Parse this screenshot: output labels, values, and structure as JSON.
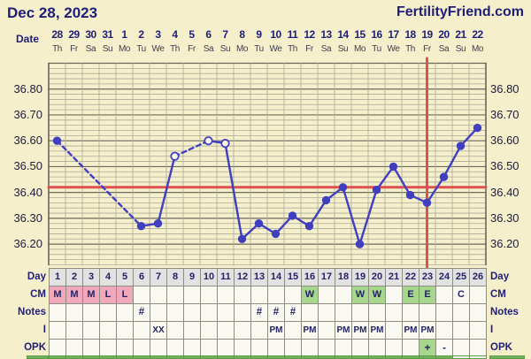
{
  "header": {
    "title": "Dec 28, 2023",
    "brand": "FertilityFriend.com"
  },
  "colors": {
    "cream": "#F6EFCC",
    "navy": "#1E1E78",
    "line_blue": "#3F3FC0",
    "accent_red": "#DE5151",
    "grid_minor": "#ABAB99",
    "grid_major": "#6A6A5C",
    "grid_border": "#55554A",
    "cell_pink": "#F2A8BC",
    "cell_green": "#A6D78C",
    "band_green": "#72B25A",
    "day_cell_gray": "#E2E2E2",
    "open_dot_fill": "#FBF8EC"
  },
  "date_header": {
    "label": "Date",
    "dates": [
      "28",
      "29",
      "30",
      "31",
      "1",
      "2",
      "3",
      "4",
      "5",
      "6",
      "7",
      "8",
      "9",
      "10",
      "11",
      "12",
      "13",
      "14",
      "15",
      "16",
      "17",
      "18",
      "19",
      "20",
      "21",
      "22"
    ],
    "dows": [
      "Th",
      "Fr",
      "Sa",
      "Su",
      "Mo",
      "Tu",
      "We",
      "Th",
      "Fr",
      "Sa",
      "Su",
      "Mo",
      "Tu",
      "We",
      "Th",
      "Fr",
      "Sa",
      "Su",
      "Mo",
      "Tu",
      "We",
      "Th",
      "Fr",
      "Sa",
      "Su",
      "Mo"
    ]
  },
  "chart_data": {
    "type": "line",
    "title": "Basal body temperature by cycle day",
    "x_days": [
      1,
      2,
      3,
      4,
      5,
      6,
      7,
      8,
      9,
      10,
      11,
      12,
      13,
      14,
      15,
      16,
      17,
      18,
      19,
      20,
      21,
      22,
      23,
      24,
      25,
      26
    ],
    "temps": [
      36.6,
      null,
      null,
      null,
      null,
      36.27,
      36.28,
      36.54,
      null,
      36.6,
      36.59,
      36.22,
      36.28,
      36.24,
      36.31,
      36.27,
      36.37,
      36.42,
      36.2,
      36.41,
      36.5,
      36.39,
      36.36,
      36.46,
      36.58,
      36.65
    ],
    "open_circle_days": [
      8,
      10,
      11
    ],
    "coverline_temp": 36.42,
    "ovulation_line_day": 23,
    "yticks": [
      "36.80",
      "36.70",
      "36.60",
      "36.50",
      "36.40",
      "36.30",
      "36.20"
    ],
    "ytick_values": [
      36.8,
      36.7,
      36.6,
      36.5,
      36.4,
      36.3,
      36.2
    ],
    "ylim": [
      36.12,
      36.9
    ],
    "grid_step": 0.02,
    "grid": "on",
    "legend_position": "none"
  },
  "table": {
    "rows": [
      {
        "id": "day",
        "label": "Day",
        "cells": [
          "1|d",
          "2|d",
          "3|d",
          "4|d",
          "5|d",
          "6|d",
          "7|d",
          "8|d",
          "9|d",
          "10|d",
          "11|d",
          "12|d",
          "13|d",
          "14|d",
          "15|d",
          "16|d",
          "17|d",
          "18|d",
          "19|d",
          "20|d",
          "21|d",
          "22|d",
          "23|d",
          "24|d",
          "25|d",
          "26|d"
        ]
      },
      {
        "id": "cm",
        "label": "CM",
        "cells": [
          "M|p",
          "M|p",
          "M|p",
          "L|p",
          "L|p",
          "|",
          "|",
          "|",
          "|",
          "|",
          "|",
          "|",
          "|",
          "|",
          "|",
          "W|g",
          "|",
          "|",
          "W|g",
          "W|g",
          "|",
          "E|g",
          "E|g",
          "|",
          "C|",
          "|"
        ]
      },
      {
        "id": "notes",
        "label": "Notes",
        "cells": [
          "|",
          "|",
          "|",
          "|",
          "|",
          "#|",
          "|",
          "|",
          "|",
          "|",
          "|",
          "|",
          "#|",
          "#|",
          "#|",
          "|",
          "|",
          "|",
          "|",
          "|",
          "|",
          "|",
          "|",
          "|",
          "|",
          "|"
        ]
      },
      {
        "id": "i",
        "label": "I",
        "cells": [
          "|",
          "|",
          "|",
          "|",
          "|",
          "|",
          "XX|",
          "|",
          "|",
          "|",
          "|",
          "|",
          "|",
          "PM|",
          "|",
          "PM|",
          "|",
          "PM|",
          "PM|",
          "PM|",
          "|",
          "PM|",
          "PM|",
          "|",
          "|",
          "|"
        ]
      },
      {
        "id": "opk",
        "label": "OPK",
        "cells": [
          "|",
          "|",
          "|",
          "|",
          "|",
          "|",
          "|",
          "|",
          "|",
          "|",
          "|",
          "|",
          "|",
          "|",
          "|",
          "|",
          "|",
          "|",
          "|",
          "|",
          "|",
          "|",
          "+|g",
          "-|",
          "|",
          "|"
        ]
      },
      {
        "id": "band",
        "label": "",
        "cells": [
          "|b",
          "|b",
          "|b",
          "|b",
          "|b",
          "|b",
          "|b",
          "|b",
          "|b",
          "|b",
          "|b",
          "|b",
          "|b",
          "|b",
          "|b",
          "|b",
          "|b",
          "|b",
          "|b",
          "|b",
          "|b",
          "|b",
          "|b",
          "|b",
          "|n",
          "|n"
        ]
      }
    ]
  }
}
